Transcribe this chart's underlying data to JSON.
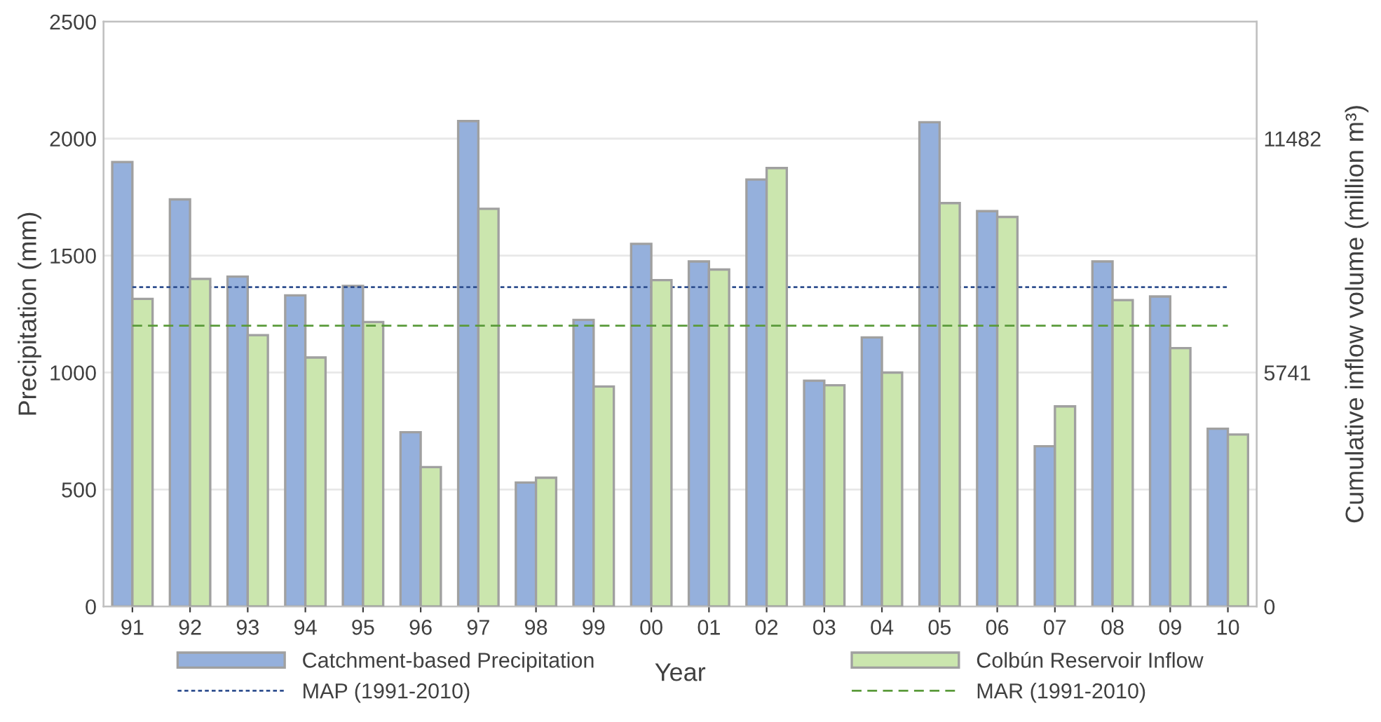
{
  "chart_data": {
    "type": "bar",
    "xlabel": "Year",
    "ylabel": "Precipitation (mm)",
    "y2label": "Cumulative inflow volume (million m³)",
    "categories": [
      "91",
      "92",
      "93",
      "94",
      "95",
      "96",
      "97",
      "98",
      "99",
      "00",
      "01",
      "02",
      "03",
      "04",
      "05",
      "06",
      "07",
      "08",
      "09",
      "10"
    ],
    "series": [
      {
        "name": "Catchment-based Precipitation",
        "color": "#95b0dc",
        "values": [
          1900,
          1740,
          1410,
          1330,
          1370,
          745,
          2075,
          530,
          1225,
          1550,
          1475,
          1825,
          965,
          1150,
          2070,
          1690,
          685,
          1475,
          1325,
          760
        ]
      },
      {
        "name": "Colbún Reservoir Inflow",
        "color": "#cbe6ae",
        "axis": "y2",
        "values": [
          7550,
          8040,
          6660,
          6110,
          6980,
          3420,
          9760,
          3160,
          5400,
          8010,
          8270,
          10760,
          5430,
          5740,
          9900,
          9560,
          4910,
          7520,
          6340,
          4220
        ]
      }
    ],
    "ylim": [
      0,
      2500
    ],
    "yticks": [
      0,
      500,
      1000,
      1500,
      2000,
      2500
    ],
    "y2lim": [
      0,
      14352.5
    ],
    "y2ticks": [
      0,
      5741,
      11482
    ],
    "ref_lines": [
      {
        "axis": "y",
        "value": 1365,
        "label": "MAP (1991-2010)",
        "color": "#2f4f8f",
        "line_style": "dotted"
      },
      {
        "axis": "y2",
        "value": 6890,
        "label": "MAR (1991-2010)",
        "color": "#5a9a3a",
        "line_style": "dashed"
      }
    ],
    "grid": "y",
    "legend": "bottom"
  }
}
